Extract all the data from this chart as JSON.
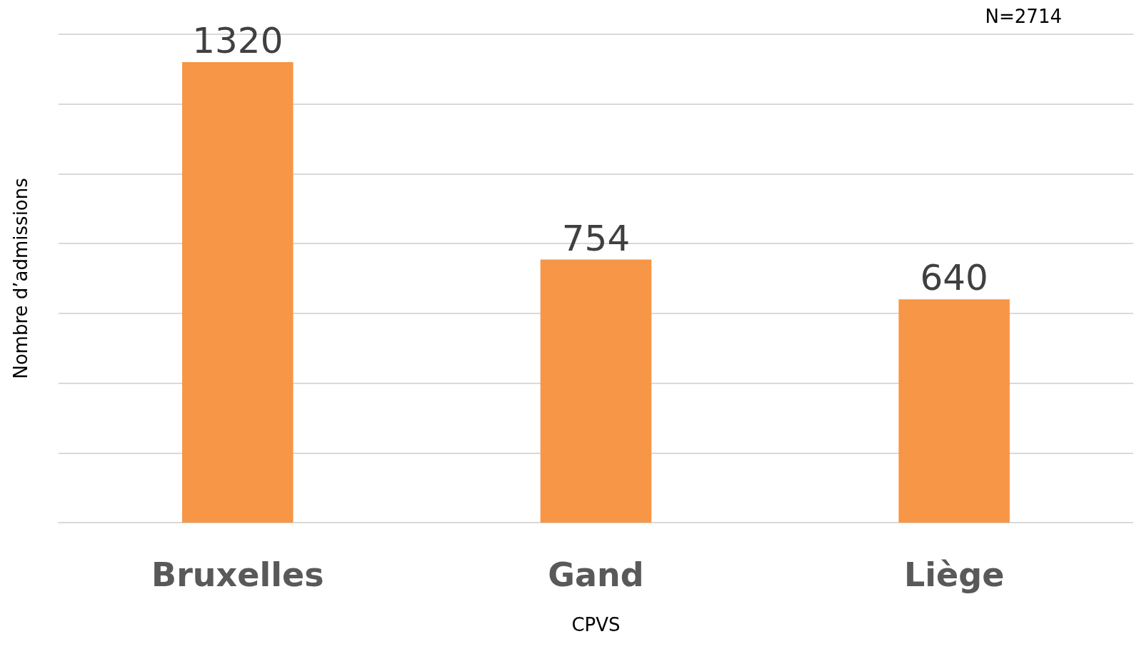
{
  "chart_data": {
    "type": "bar",
    "xlabel": "CPVS",
    "ylabel": "Nombre d’admissions",
    "categories": [
      "Bruxelles",
      "Gand",
      "Liège"
    ],
    "values": [
      1320,
      754,
      640
    ],
    "color": "#f79646",
    "ylim": [
      0,
      1400
    ],
    "yticks": [
      {
        "value": 0,
        "label": null
      },
      {
        "value": 200,
        "label": null
      },
      {
        "value": 400,
        "label": null
      },
      {
        "value": 600,
        "label": null
      },
      {
        "value": 800,
        "label": null
      },
      {
        "value": 1000,
        "label": null
      },
      {
        "value": 1200,
        "label": null
      },
      {
        "value": 1400,
        "label": null
      }
    ],
    "tick_labels": "x",
    "grid": "y",
    "data_labels": true,
    "annotations": [
      "N=2714"
    ]
  }
}
